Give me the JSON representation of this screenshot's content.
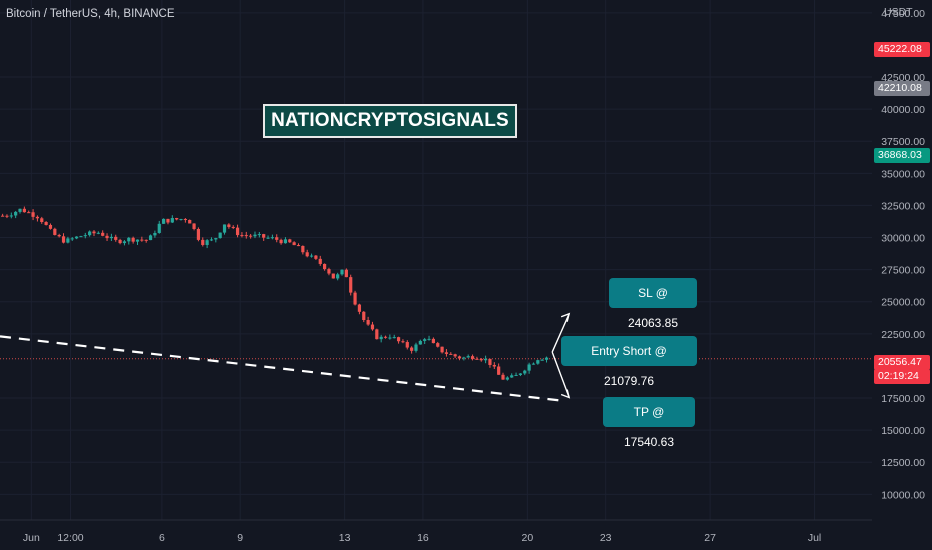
{
  "symbol_title": "Bitcoin / TetherUS, 4h, BINANCE",
  "axis_currency": "USDT",
  "watermark": "NATIONCRYPTOSIGNALS",
  "callouts": {
    "sl": "SL @ 24063.85",
    "entry": "Entry Short @ 21079.76",
    "tp": "TP @ 17540.63"
  },
  "badges": {
    "high": "45222.08",
    "mid": "42210.08",
    "green": "36868.03",
    "current": "20556.47",
    "countdown": "02:19:24"
  },
  "colors": {
    "background": "#131722",
    "up": "#26a69a",
    "down": "#ef5350",
    "callout": "#0b7c86",
    "badge_red": "#f23645",
    "badge_gray": "#787b86",
    "badge_green": "#089981"
  },
  "chart_data": {
    "type": "candlestick",
    "y_ticks": [
      47500,
      42500,
      40000,
      37500,
      35000,
      32500,
      30000,
      27500,
      25000,
      22500,
      17500,
      15000,
      12500,
      10000
    ],
    "y_tick_labels": [
      "47500.00",
      "42500.00",
      "40000.00",
      "37500.00",
      "35000.00",
      "32500.00",
      "30000.00",
      "27500.00",
      "25000.00",
      "22500.00",
      "17500.00",
      "15000.00",
      "12500.00",
      "10000.00"
    ],
    "ylim": [
      8000,
      48500
    ],
    "x_tick_labels": [
      "Jun",
      "12:00",
      "6",
      "9",
      "13",
      "16",
      "20",
      "23",
      "27",
      "Jul"
    ],
    "x_tick_days": [
      1,
      2.5,
      6,
      9,
      13,
      16,
      20,
      23,
      27,
      31
    ],
    "xlim": [
      -0.2,
      33.2
    ],
    "current_price": 20556.47,
    "stop_loss": 24063.85,
    "entry": 21079.76,
    "take_profit": 17540.63,
    "trendline": [
      [
        -0.2,
        22300
      ],
      [
        21.3,
        17300
      ]
    ],
    "close_path": [
      [
        0.0,
        31700
      ],
      [
        0.6,
        32200
      ],
      [
        1.3,
        31600
      ],
      [
        1.8,
        30300
      ],
      [
        2.3,
        29700
      ],
      [
        3.0,
        30200
      ],
      [
        3.6,
        30400
      ],
      [
        4.2,
        29700
      ],
      [
        4.8,
        29900
      ],
      [
        5.5,
        29800
      ],
      [
        6.0,
        31300
      ],
      [
        6.5,
        31400
      ],
      [
        7.0,
        31500
      ],
      [
        7.5,
        29600
      ],
      [
        8.0,
        29800
      ],
      [
        8.4,
        31100
      ],
      [
        9.0,
        30200
      ],
      [
        9.6,
        30100
      ],
      [
        10.3,
        29900
      ],
      [
        11.0,
        29500
      ],
      [
        11.6,
        28600
      ],
      [
        12.2,
        27800
      ],
      [
        12.6,
        26800
      ],
      [
        13.0,
        27500
      ],
      [
        13.3,
        25400
      ],
      [
        13.8,
        23300
      ],
      [
        14.3,
        22100
      ],
      [
        14.7,
        22400
      ],
      [
        15.2,
        21700
      ],
      [
        15.6,
        21300
      ],
      [
        16.1,
        22300
      ],
      [
        16.5,
        21400
      ],
      [
        17.0,
        20900
      ],
      [
        17.5,
        20600
      ],
      [
        18.0,
        20800
      ],
      [
        18.5,
        20400
      ],
      [
        19.0,
        19000
      ],
      [
        19.5,
        19100
      ],
      [
        20.0,
        20000
      ],
      [
        20.4,
        20600
      ],
      [
        20.8,
        20700
      ]
    ]
  }
}
